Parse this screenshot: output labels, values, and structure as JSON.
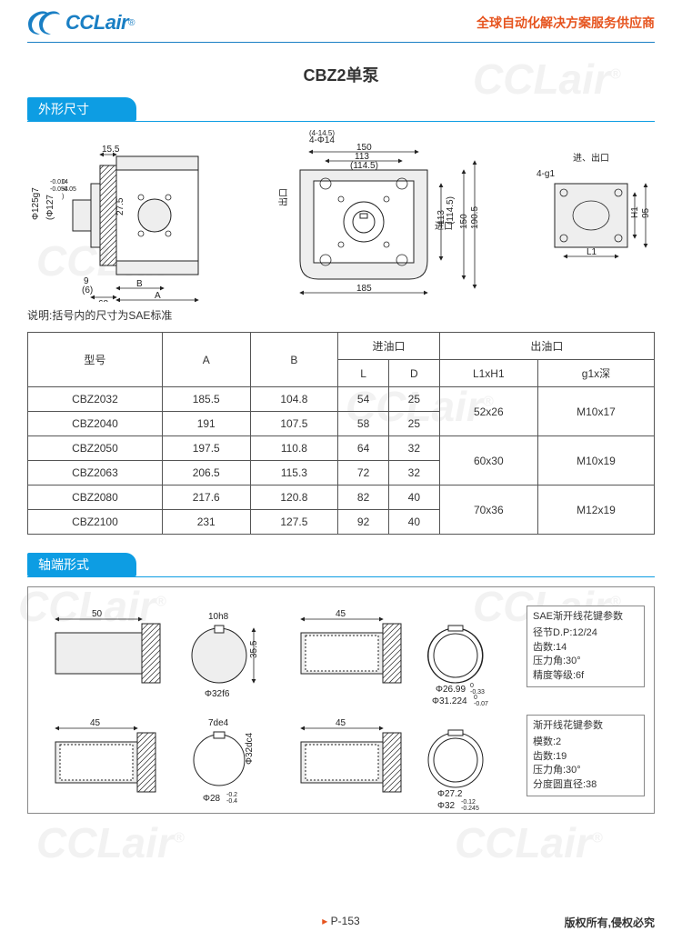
{
  "header": {
    "logo_text": "CCLair",
    "logo_r": "®",
    "tagline": "全球自动化解决方案服务供应商"
  },
  "title": "CBZ2单泵",
  "section1_title": "外形尺寸",
  "drawing1": {
    "d1": "15.5",
    "d2": "Φ125g7",
    "d2_tol_top": "-0.014",
    "d2_tol_bot": "-0.054",
    "d3": "(Φ127",
    "d3_tol_top": "0",
    "d3_tol_bot": "-0.05",
    "d3_close": ")",
    "d4": "27.5",
    "d5": "9",
    "d6": "(6)",
    "d7": "68",
    "d8": "B",
    "d9": "A",
    "m1": "150",
    "m2": "113",
    "m3": "(114.5)",
    "m4": "4-Φ14",
    "m5": "(4-14.5)",
    "m6": "出口",
    "m7": "进口",
    "m8": "113",
    "m9": "(114.5)",
    "m10": "150",
    "m11": "190.5",
    "m12": "185",
    "r1": "进、出口",
    "r2": "4-g1",
    "r3": "H1",
    "r4": "95",
    "r5": "L1"
  },
  "note": "说明:括号内的尺寸为SAE标准",
  "table": {
    "head": {
      "model": "型号",
      "A": "A",
      "B": "B",
      "inlet": "进油口",
      "outlet": "出油口",
      "L": "L",
      "D": "D",
      "L1H1": "L1xH1",
      "g1": "g1x深"
    },
    "rows": [
      {
        "model": "CBZ2032",
        "A": "185.5",
        "B": "104.8",
        "L": "54",
        "D": "25"
      },
      {
        "model": "CBZ2040",
        "A": "191",
        "B": "107.5",
        "L": "58",
        "D": "25"
      },
      {
        "model": "CBZ2050",
        "A": "197.5",
        "B": "110.8",
        "L": "64",
        "D": "32"
      },
      {
        "model": "CBZ2063",
        "A": "206.5",
        "B": "115.3",
        "L": "72",
        "D": "32"
      },
      {
        "model": "CBZ2080",
        "A": "217.6",
        "B": "120.8",
        "L": "82",
        "D": "40"
      },
      {
        "model": "CBZ2100",
        "A": "231",
        "B": "127.5",
        "L": "92",
        "D": "40"
      }
    ],
    "merged": [
      {
        "L1H1": "52x26",
        "g1": "M10x17"
      },
      {
        "L1H1": "60x30",
        "g1": "M10x19"
      },
      {
        "L1H1": "70x36",
        "g1": "M12x19"
      }
    ]
  },
  "section2_title": "轴端形式",
  "shaft": {
    "s1_len": "50",
    "s1_key": "10h8",
    "s1_h": "35.5",
    "s1_d": "Φ32f6",
    "s2_len": "45",
    "s2_key": "7de4",
    "s2_side": "Φ32dc4",
    "s2_d": "Φ28",
    "s2_tol_top": "-0.2",
    "s2_tol_bot": "-0.4",
    "s3_len": "45",
    "s3_d1": "Φ26.99",
    "s3_d1_tol_top": "0",
    "s3_d1_tot_bot": "-0.33",
    "s3_d2": "Φ31.224",
    "s3_d2_tol_top": "0",
    "s3_d2_tol_bot": "-0.07",
    "s4_len": "45",
    "s4_d1": "Φ27.2",
    "s4_d2": "Φ32",
    "s4_d2_tol_top": "-0.12",
    "s4_d2_tol_bot": "-0.245",
    "box1_title": "SAE渐开线花键参数",
    "box1_l1": "径节D.P:12/24",
    "box1_l2": "齿数:14",
    "box1_l3": "压力角:30°",
    "box1_l4": "精度等级:6f",
    "box2_title": "渐开线花键参数",
    "box2_l1": "模数:2",
    "box2_l2": "齿数:19",
    "box2_l3": "压力角:30°",
    "box2_l4": "分度圆直径:38"
  },
  "footer": {
    "page": "P-153",
    "copyright": "版权所有,侵权必究"
  },
  "colors": {
    "brand_blue": "#1a7fc4",
    "accent_blue": "#0d9de3",
    "orange": "#e6541f",
    "watermark": "#f2f2f2",
    "border": "#555555"
  }
}
